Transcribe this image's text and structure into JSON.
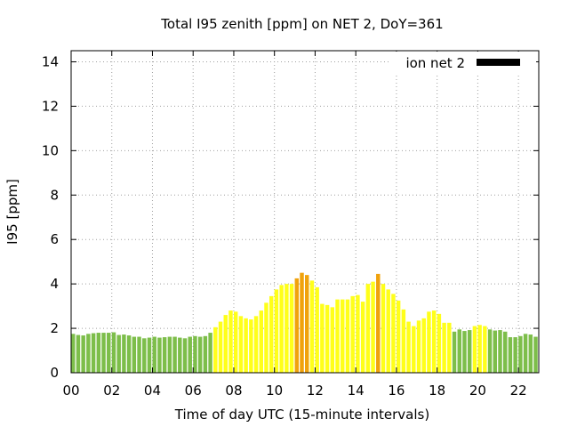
{
  "chart_data": {
    "type": "bar",
    "title": "Total I95 zenith [ppm] on NET 2, DoY=361",
    "xlabel": "Time of day UTC (15-minute intervals)",
    "ylabel": "I95 [ppm]",
    "xlim": [
      0,
      23
    ],
    "ylim": [
      0,
      14.5
    ],
    "x_ticks": [
      "00",
      "02",
      "04",
      "06",
      "08",
      "10",
      "12",
      "14",
      "16",
      "18",
      "20",
      "22"
    ],
    "y_ticks": [
      "0",
      "2",
      "4",
      "6",
      "8",
      "10",
      "12",
      "14"
    ],
    "grid": true,
    "legend_position": "top-right",
    "interval_hours": 0.25,
    "series": [
      {
        "name": "ion net 2",
        "color": "#000000",
        "values": [
          1.75,
          1.7,
          1.68,
          1.75,
          1.78,
          1.8,
          1.8,
          1.8,
          1.82,
          1.7,
          1.72,
          1.68,
          1.62,
          1.62,
          1.55,
          1.58,
          1.62,
          1.58,
          1.6,
          1.62,
          1.62,
          1.58,
          1.55,
          1.62,
          1.65,
          1.62,
          1.65,
          1.8,
          2.05,
          2.3,
          2.6,
          2.8,
          2.75,
          2.55,
          2.45,
          2.4,
          2.55,
          2.8,
          3.15,
          3.45,
          3.75,
          3.95,
          4.0,
          4.0,
          4.25,
          4.5,
          4.4,
          4.15,
          3.85,
          3.1,
          3.05,
          2.95,
          3.3,
          3.3,
          3.3,
          3.45,
          3.5,
          3.2,
          4.0,
          4.1,
          4.45,
          4.0,
          3.75,
          3.55,
          3.25,
          2.85,
          2.3,
          2.1,
          2.35,
          2.45,
          2.75,
          2.8,
          2.65,
          2.25,
          2.25,
          1.85,
          1.95,
          1.88,
          1.92,
          2.1,
          2.15,
          2.1,
          1.95,
          1.9,
          1.92,
          1.85,
          1.6,
          1.6,
          1.65,
          1.75,
          1.72,
          1.62
        ]
      }
    ],
    "color_bands": [
      {
        "min": 0,
        "max": 2.0,
        "color": "#7dbe4a"
      },
      {
        "min": 2.0,
        "max": 4.2,
        "color": "#ffff1a"
      },
      {
        "min": 4.2,
        "max": 99,
        "color": "#f0a20c"
      }
    ]
  }
}
